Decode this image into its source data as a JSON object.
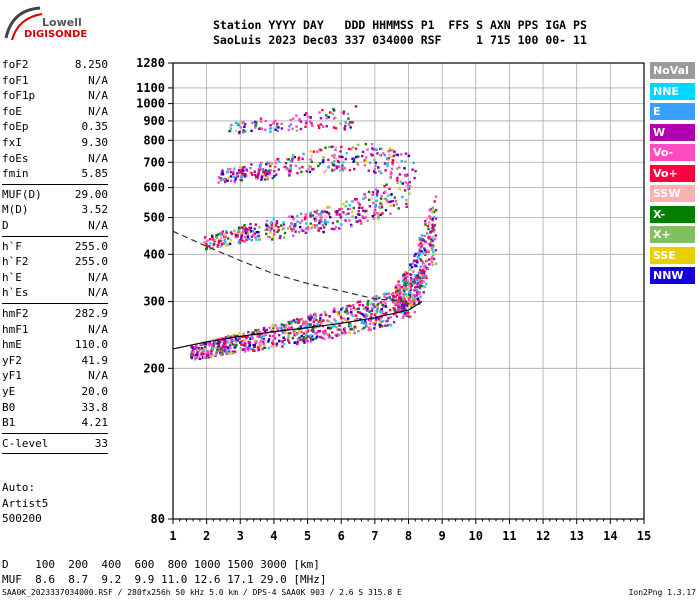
{
  "logo": {
    "line1": "Lowell",
    "line2": "DIGISONDE"
  },
  "header": {
    "line1": "Station YYYY DAY   DDD HHMMSS P1  FFS S AXN PPS IGA PS",
    "line2": "SaoLuis 2023 Dec03 337 034000 RSF     1 715 100 00- 11"
  },
  "params_group1": [
    {
      "label": "foF2",
      "value": "8.250"
    },
    {
      "label": "foF1",
      "value": "N/A"
    },
    {
      "label": "foF1p",
      "value": "N/A"
    },
    {
      "label": "foE",
      "value": "N/A"
    },
    {
      "label": "foEp",
      "value": "0.35"
    },
    {
      "label": "fxI",
      "value": "9.30"
    },
    {
      "label": "foEs",
      "value": "N/A"
    },
    {
      "label": "fmin",
      "value": "5.85"
    }
  ],
  "params_group2": [
    {
      "label": "MUF(D)",
      "value": "29.00"
    },
    {
      "label": "M(D)",
      "value": "3.52"
    },
    {
      "label": "D",
      "value": "N/A"
    }
  ],
  "params_group3": [
    {
      "label": "h`F",
      "value": "255.0"
    },
    {
      "label": "h`F2",
      "value": "255.0"
    },
    {
      "label": "h`E",
      "value": "N/A"
    },
    {
      "label": "h`Es",
      "value": "N/A"
    }
  ],
  "params_group4": [
    {
      "label": "hmF2",
      "value": "282.9"
    },
    {
      "label": "hmF1",
      "value": "N/A"
    },
    {
      "label": "hmE",
      "value": "110.0"
    },
    {
      "label": "yF2",
      "value": "41.9"
    },
    {
      "label": "yF1",
      "value": "N/A"
    },
    {
      "label": "yE",
      "value": "20.0"
    },
    {
      "label": "B0",
      "value": "33.8"
    },
    {
      "label": "B1",
      "value": "4.21"
    }
  ],
  "params_group5": [
    {
      "label": "C-level",
      "value": "33"
    }
  ],
  "auto": {
    "line1": "Auto:",
    "line2": "Artist5",
    "line3": "500200"
  },
  "legend": [
    {
      "label": "NoVal",
      "color": "#9a9a9a"
    },
    {
      "label": "NNE",
      "color": "#00d8ff"
    },
    {
      "label": "E",
      "color": "#3aa0ff"
    },
    {
      "label": "W",
      "color": "#b000b0"
    },
    {
      "label": "Vo-",
      "color": "#ff4cc0"
    },
    {
      "label": "Vo+",
      "color": "#ff0040"
    },
    {
      "label": "SSW",
      "color": "#ffb0b0"
    },
    {
      "label": "X-",
      "color": "#008000"
    },
    {
      "label": "X+",
      "color": "#80c060"
    },
    {
      "label": "SSE",
      "color": "#e8d000"
    },
    {
      "label": "NNW",
      "color": "#1400d8"
    }
  ],
  "footer": {
    "d_row": "D    100  200  400  600  800 1000 1500 3000 [km]",
    "muf_row": "MUF  8.6  8.7  9.2  9.9 11.0 12.6 17.1 29.0 [MHz]",
    "file_line": "SAA0K_2023337034000.RSF / 280fx256h 50 kHz 5.0 km / DPS-4 SAA0K 903 / 2.6 S 315.8 E",
    "version": "Ion2Png 1.3.17"
  },
  "chart_data": {
    "type": "scatter",
    "x_range": [
      1,
      15
    ],
    "y_range": [
      80,
      1280
    ],
    "x_ticks": [
      1,
      2,
      3,
      4,
      5,
      6,
      7,
      8,
      9,
      10,
      11,
      12,
      13,
      14,
      15
    ],
    "y_ticks": [
      80,
      200,
      300,
      400,
      500,
      600,
      700,
      800,
      900,
      1000,
      1100,
      1280
    ],
    "y_scale": "log",
    "grid": true,
    "traces": [
      {
        "name": "F2 o-trace (1st hop)",
        "x": [
          1.5,
          2.5,
          3.5,
          4.5,
          5.5,
          6.5,
          7.5,
          8.0,
          8.3,
          8.5
        ],
        "y": [
          220,
          232,
          240,
          250,
          262,
          275,
          290,
          305,
          330,
          380
        ]
      },
      {
        "name": "F2 2nd hop",
        "x": [
          1.9,
          3.0,
          4.0,
          5.0,
          6.0,
          7.0,
          8.0
        ],
        "y": [
          430,
          455,
          470,
          485,
          510,
          545,
          600
        ]
      },
      {
        "name": "F2 3rd hop",
        "x": [
          2.3,
          3.5,
          4.5,
          5.5,
          6.5,
          7.5,
          8.2
        ],
        "y": [
          645,
          665,
          690,
          715,
          735,
          700,
          660
        ]
      },
      {
        "name": "F2 4th hop",
        "x": [
          2.5,
          3.5,
          4.5,
          5.5,
          6.5
        ],
        "y": [
          860,
          880,
          900,
          910,
          930
        ]
      },
      {
        "name": "F2 cusp",
        "x": [
          7.5,
          8.0,
          8.3,
          8.5,
          8.8
        ],
        "y": [
          300,
          330,
          380,
          430,
          470
        ]
      }
    ],
    "profile_dashed": {
      "x": [
        1.0,
        2.0,
        3.0,
        4.0,
        5.0,
        6.0,
        7.0,
        8.0
      ],
      "y": [
        460,
        420,
        385,
        355,
        335,
        320,
        305,
        300
      ]
    },
    "profile_solid": {
      "x": [
        1.0,
        2.0,
        3.0,
        4.0,
        5.0,
        6.0,
        7.0,
        8.0,
        8.4
      ],
      "y": [
        225,
        235,
        243,
        250,
        256,
        263,
        272,
        285,
        300
      ]
    }
  }
}
